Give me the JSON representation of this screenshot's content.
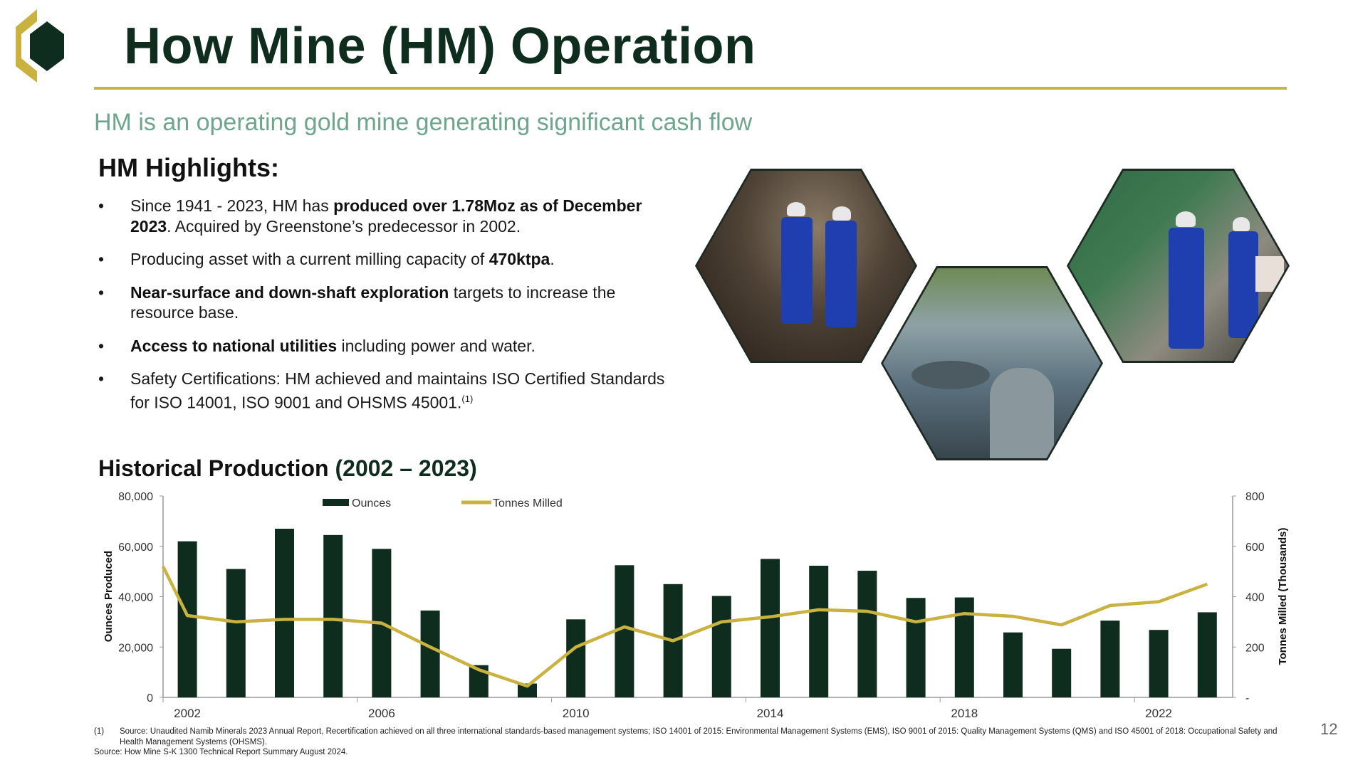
{
  "header": {
    "title": "How Mine (HM) Operation",
    "subtitle": "HM is an operating gold mine generating significant cash flow"
  },
  "colors": {
    "dark_green": "#0f2d1f",
    "gold": "#c9b23f",
    "sage": "#6da58e"
  },
  "highlights": {
    "title": "HM Highlights:",
    "bullet_char": "•",
    "items": [
      {
        "segments": [
          {
            "text": "Since 1941 - 2023, HM has ",
            "bold": false
          },
          {
            "text": "produced over 1.78Moz as of December 2023",
            "bold": true
          },
          {
            "text": ". Acquired by Greenstone’s predecessor in 2002.",
            "bold": false
          }
        ]
      },
      {
        "segments": [
          {
            "text": "Producing asset with a current milling capacity of ",
            "bold": false
          },
          {
            "text": "470ktpa",
            "bold": true
          },
          {
            "text": ".",
            "bold": false
          }
        ]
      },
      {
        "segments": [
          {
            "text": "Near-surface and down-shaft exploration",
            "bold": true
          },
          {
            "text": " targets to increase the resource base.",
            "bold": false
          }
        ]
      },
      {
        "segments": [
          {
            "text": "Access to national utilities",
            "bold": true
          },
          {
            "text": " including power and water.",
            "bold": false
          }
        ]
      },
      {
        "segments": [
          {
            "text": "Safety Certifications: HM achieved and maintains ISO Certified Standards for ISO 14001, ISO 9001 and OHSMS 45001.",
            "bold": false
          }
        ],
        "sup": "(1)"
      }
    ]
  },
  "production": {
    "title": "Historical Production",
    "title_years": "(2002 – 2023)"
  },
  "chart_data": {
    "type": "bar+line",
    "title": "Historical Production (2002 – 2023)",
    "x": [
      2002,
      2003,
      2004,
      2005,
      2006,
      2007,
      2008,
      2009,
      2010,
      2011,
      2012,
      2013,
      2014,
      2015,
      2016,
      2017,
      2018,
      2019,
      2020,
      2021,
      2022,
      2023
    ],
    "x_tick_labels": [
      "2002",
      "2006",
      "2010",
      "2014",
      "2018",
      "2022"
    ],
    "series": [
      {
        "name": "Ounces",
        "type": "bar",
        "axis": "left",
        "color": "#0f2d1f",
        "values": [
          62000,
          51000,
          67000,
          64500,
          59000,
          34500,
          12800,
          5500,
          31000,
          52500,
          45000,
          40300,
          55000,
          52300,
          50300,
          39500,
          39700,
          25800,
          19300,
          30500,
          26800,
          33800
        ]
      },
      {
        "name": "Tonnes Milled",
        "type": "line",
        "axis": "right",
        "color": "#c9b23f",
        "x": [
          2001.5,
          2002,
          2003,
          2004,
          2005,
          2006,
          2007,
          2008,
          2009,
          2010,
          2011,
          2012,
          2013,
          2014,
          2015,
          2016,
          2017,
          2018,
          2019,
          2020,
          2021,
          2022,
          2023
        ],
        "values": [
          520,
          325,
          300,
          310,
          310,
          295,
          200,
          110,
          45,
          200,
          280,
          225,
          300,
          320,
          348,
          342,
          300,
          333,
          322,
          288,
          365,
          380,
          450
        ]
      }
    ],
    "ylabel": "Ounces Produced",
    "ylim": [
      0,
      80000
    ],
    "y_tick_labels": [
      "0",
      "20,000",
      "40,000",
      "60,000",
      "80,000"
    ],
    "y2label": "Tonnes Milled (Thousands)",
    "y2lim": [
      0,
      800
    ],
    "y2_tick_labels": [
      "-",
      "200",
      "400",
      "600",
      "800"
    ],
    "legend": [
      "Ounces",
      "Tonnes Milled"
    ],
    "legend_position": "top-left",
    "grid": false
  },
  "footnotes": {
    "note1_marker": "(1)",
    "note1": "Source: Unaudited Namib Minerals 2023 Annual Report, Recertification achieved on all three international standards-based management systems; ISO 14001 of 2015: Environmental Management Systems (EMS), ISO 9001 of 2015: Quality Management Systems (QMS) and ISO 45001 of 2018: Occupational Safety and Health Management Systems (OHSMS).",
    "source": "Source: How Mine S-K 1300 Technical Report Summary August 2024."
  },
  "page_number": "12"
}
